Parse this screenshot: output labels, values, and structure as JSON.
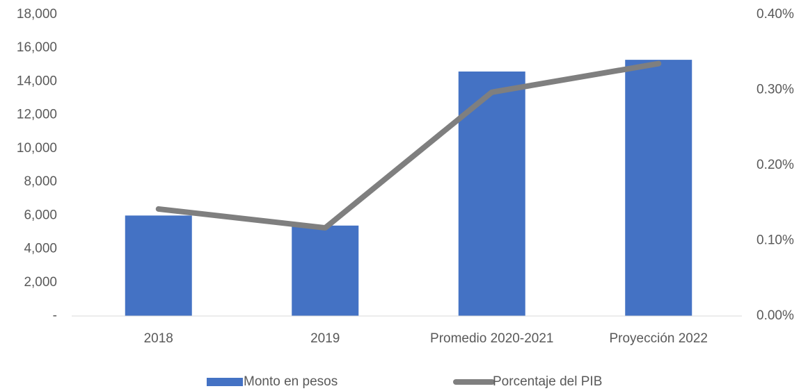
{
  "chart_data": {
    "type": "bar_line",
    "categories": [
      "2018",
      "2019",
      "Promedio 2020-2021",
      "Proyección 2022"
    ],
    "series": [
      {
        "name": "Monto en pesos",
        "type": "bar",
        "color": "#4472c4",
        "values": [
          6000,
          5400,
          14600,
          15300
        ]
      },
      {
        "name": "Porcentaje del PIB",
        "type": "line",
        "axis": "y2",
        "color": "#7f7f7f",
        "values": [
          0.142,
          0.117,
          0.297,
          0.335
        ]
      }
    ],
    "ylim": [
      0,
      18000
    ],
    "yticks": [
      {
        "value": 0,
        "label": "-"
      },
      {
        "value": 2000,
        "label": "2,000"
      },
      {
        "value": 4000,
        "label": "4,000"
      },
      {
        "value": 6000,
        "label": "6,000"
      },
      {
        "value": 8000,
        "label": "8,000"
      },
      {
        "value": 10000,
        "label": "10,000"
      },
      {
        "value": 12000,
        "label": "12,000"
      },
      {
        "value": 14000,
        "label": "14,000"
      },
      {
        "value": 16000,
        "label": "16,000"
      },
      {
        "value": 18000,
        "label": "18,000"
      }
    ],
    "y2lim": [
      0,
      0.4
    ],
    "y2ticks": [
      {
        "value": 0,
        "label": "0.00%"
      },
      {
        "value": 0.1,
        "label": "0.10%"
      },
      {
        "value": 0.2,
        "label": "0.20%"
      },
      {
        "value": 0.3,
        "label": "0.30%"
      },
      {
        "value": 0.4,
        "label": "0.40%"
      }
    ],
    "legend": "bottom",
    "grid": false
  }
}
